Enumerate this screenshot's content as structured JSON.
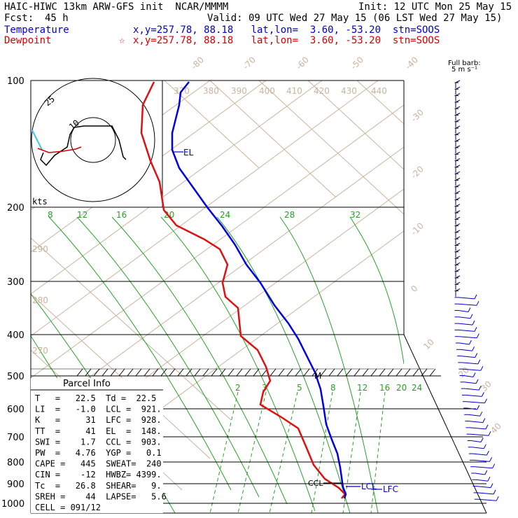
{
  "header": {
    "title": "HAIC-HIWC 13km ARW-GFS init  NCAR/MMMM",
    "init": "Init: 12 UTC Mon 25 May 15",
    "fcst_label": "Fcst:",
    "fcst_value": "45 h",
    "valid": "Valid: 09 UTC Wed 27 May 15 (06 LST Wed 27 May 15)",
    "temp_label": "Temperature",
    "temp_info": "x,y=257.78, 88.18   lat,lon=  3.60, -53.20  stn=SOOS",
    "dew_label": "Dewpoint",
    "dew_info": "x,y=257.78, 88.18   lat,lon=  3.60, -53.20  stn=SOOS",
    "star": "☆",
    "barb_title1": "Full barb:",
    "barb_title2": "5 m s⁻¹"
  },
  "parcel_info": {
    "title": "Parcel Info",
    "lines": [
      "T   =   22.5  Td =  22.5",
      "LI  =   -1.0  LCL =  921.",
      "K   =     31  LFC =  928.",
      "TT  =     41  EL  =  148.",
      "SWI =    1.7  CCL =  903.",
      "PW  =   4.76  YGP =   0.1",
      "CAPE =   445  SWEAT=  240",
      "CIN =    -12  HWBZ= 4399.",
      "Tc  =   26.8  SHEAR=   9.",
      "SREH =    44  LAPSE=   5.6",
      "CELL = 091/12"
    ]
  },
  "hodograph": {
    "ring_labels": [
      "10",
      "25"
    ],
    "units": "kts"
  },
  "chart_data": {
    "type": "skew-t",
    "pressure_levels": [
      100,
      200,
      300,
      400,
      500,
      600,
      700,
      800,
      900,
      1000
    ],
    "temperature_labels": [
      "-80",
      "-70",
      "-60",
      "-50",
      "-40",
      "-30",
      "-20",
      "-10",
      "0",
      "10",
      "20",
      "30",
      "40"
    ],
    "theta_labels": [
      "370",
      "380",
      "390",
      "400",
      "410",
      "420",
      "430",
      "440"
    ],
    "theta_side_labels": [
      "290",
      "280",
      "270"
    ],
    "mixing_ratio_labels_upper": [
      "8",
      "12",
      "16",
      "20",
      "24",
      "28",
      "32"
    ],
    "mixing_ratio_labels_lower": [
      "2",
      "3",
      "5",
      "8",
      "12",
      "16",
      "20",
      "24"
    ],
    "markers": {
      "el": "EL",
      "lcl": "LCL",
      "lfc": "LFC",
      "ccl": "CCL",
      "mid": "M"
    },
    "temperature_profile": [
      {
        "p": 1000,
        "pix": [
          493,
          709
        ]
      }
    ],
    "series": [
      {
        "name": "Temperature",
        "color": "#0000c8"
      },
      {
        "name": "Dewpoint",
        "color": "#d40000"
      }
    ]
  }
}
